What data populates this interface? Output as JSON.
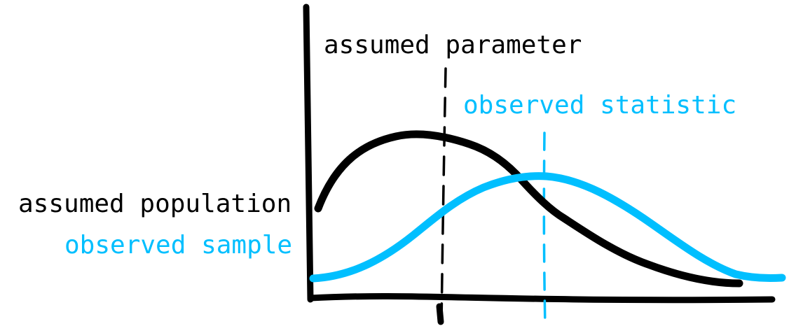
{
  "labels": {
    "assumed_parameter": "assumed parameter",
    "observed_statistic": "observed statistic",
    "assumed_population": "assumed population",
    "observed_sample": "observed sample"
  },
  "colors": {
    "black": "#000000",
    "blue": "#00bfff"
  }
}
